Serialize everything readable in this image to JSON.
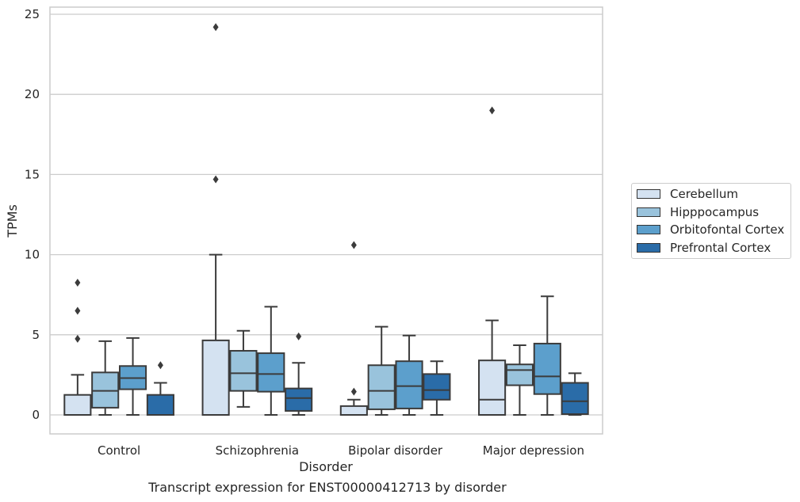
{
  "caption": "Transcript expression for ENST00000412713 by disorder",
  "chart_data": {
    "type": "box",
    "xlabel": "Disorder",
    "ylabel": "TPMs",
    "ylim": [
      -1.2,
      25.5
    ],
    "yticks": [
      0,
      5,
      10,
      15,
      20,
      25
    ],
    "grid": "horizontal",
    "legend_position": "right",
    "categories": [
      "Control",
      "Schizophrenia",
      "Bipolar disorder",
      "Major depression"
    ],
    "series": [
      {
        "name": "Cerebellum",
        "color": "#d4e2f1",
        "boxes": [
          {
            "min": 0,
            "q1": 0,
            "median": 0,
            "q3": 1.25,
            "max": 2.5,
            "outliers": [
              4.75,
              6.5,
              8.25
            ]
          },
          {
            "min": 0,
            "q1": 0,
            "median": 0,
            "q3": 4.65,
            "max": 10.0,
            "outliers": [
              14.7,
              24.2
            ]
          },
          {
            "min": 0,
            "q1": 0,
            "median": 0,
            "q3": 0.55,
            "max": 0.95,
            "outliers": [
              1.45,
              10.6
            ]
          },
          {
            "min": 0,
            "q1": 0,
            "median": 0.95,
            "q3": 3.4,
            "max": 5.9,
            "outliers": [
              19.0
            ]
          }
        ]
      },
      {
        "name": "Hipppocampus",
        "color": "#99c3dc",
        "boxes": [
          {
            "min": 0,
            "q1": 0.45,
            "median": 1.5,
            "q3": 2.65,
            "max": 4.6,
            "outliers": []
          },
          {
            "min": 0.5,
            "q1": 1.5,
            "median": 2.6,
            "q3": 4.0,
            "max": 5.25,
            "outliers": []
          },
          {
            "min": 0,
            "q1": 0.35,
            "median": 1.5,
            "q3": 3.1,
            "max": 5.5,
            "outliers": []
          },
          {
            "min": 0,
            "q1": 1.85,
            "median": 2.8,
            "q3": 3.15,
            "max": 4.35,
            "outliers": []
          }
        ]
      },
      {
        "name": "Orbitofontal Cortex",
        "color": "#5c9fcc",
        "boxes": [
          {
            "min": 0,
            "q1": 1.6,
            "median": 2.3,
            "q3": 3.05,
            "max": 4.8,
            "outliers": []
          },
          {
            "min": 0,
            "q1": 1.45,
            "median": 2.55,
            "q3": 3.85,
            "max": 6.75,
            "outliers": []
          },
          {
            "min": 0,
            "q1": 0.4,
            "median": 1.8,
            "q3": 3.35,
            "max": 4.95,
            "outliers": []
          },
          {
            "min": 0,
            "q1": 1.3,
            "median": 2.4,
            "q3": 4.45,
            "max": 7.4,
            "outliers": []
          }
        ]
      },
      {
        "name": "Prefrontal Cortex",
        "color": "#2a6ca8",
        "boxes": [
          {
            "min": 0,
            "q1": 0,
            "median": 0,
            "q3": 1.25,
            "max": 2.0,
            "outliers": [
              3.1
            ]
          },
          {
            "min": 0,
            "q1": 0.25,
            "median": 1.05,
            "q3": 1.65,
            "max": 3.25,
            "outliers": [
              4.9
            ]
          },
          {
            "min": 0,
            "q1": 0.95,
            "median": 1.55,
            "q3": 2.55,
            "max": 3.35,
            "outliers": []
          },
          {
            "min": 0,
            "q1": 0.05,
            "median": 0.85,
            "q3": 2.0,
            "max": 2.6,
            "outliers": []
          }
        ]
      }
    ]
  }
}
